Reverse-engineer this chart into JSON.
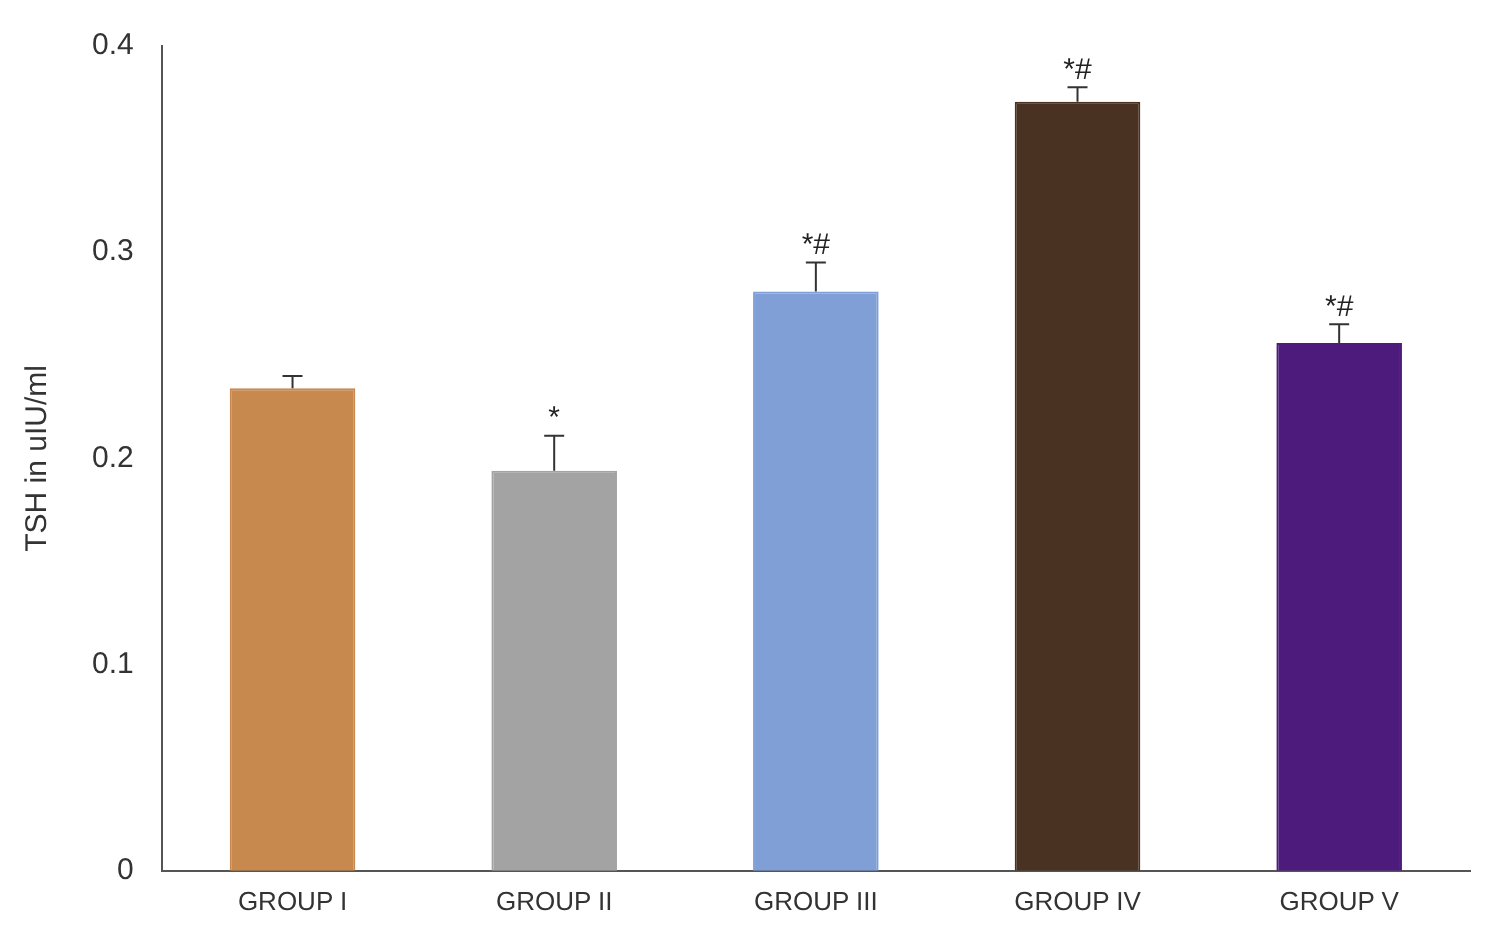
{
  "chart_data": {
    "type": "bar",
    "ylabel": "TSH in uIU/ml",
    "categories": [
      "GROUP I",
      "GROUP II",
      "GROUP III",
      "GROUP IV",
      "GROUP V"
    ],
    "values": [
      0.234,
      0.194,
      0.281,
      0.373,
      0.256
    ],
    "errors": [
      0.006,
      0.017,
      0.014,
      0.007,
      0.009
    ],
    "colors": [
      "#c8894f",
      "#a3a3a3",
      "#7f9fd6",
      "#4a3222",
      "#4c1b7c"
    ],
    "ylim": [
      0,
      0.4
    ],
    "yticks": [
      0,
      {
        "value": 0.1,
        "label": "0.1"
      },
      {
        "value": 0.2,
        "label": "0.2"
      },
      {
        "value": 0.3,
        "label": "0.3"
      },
      {
        "value": 0.4,
        "label": "0.4"
      }
    ],
    "grid": false,
    "legend": false,
    "annotations": [
      {
        "text": "*",
        "x": "GROUP II",
        "y": 0.211
      },
      {
        "text": "*#",
        "x": "GROUP III",
        "y": 0.295
      },
      {
        "text": "*#",
        "x": "GROUP IV",
        "y": 0.38
      },
      {
        "text": "*#",
        "x": "GROUP V",
        "y": 0.265
      }
    ]
  }
}
